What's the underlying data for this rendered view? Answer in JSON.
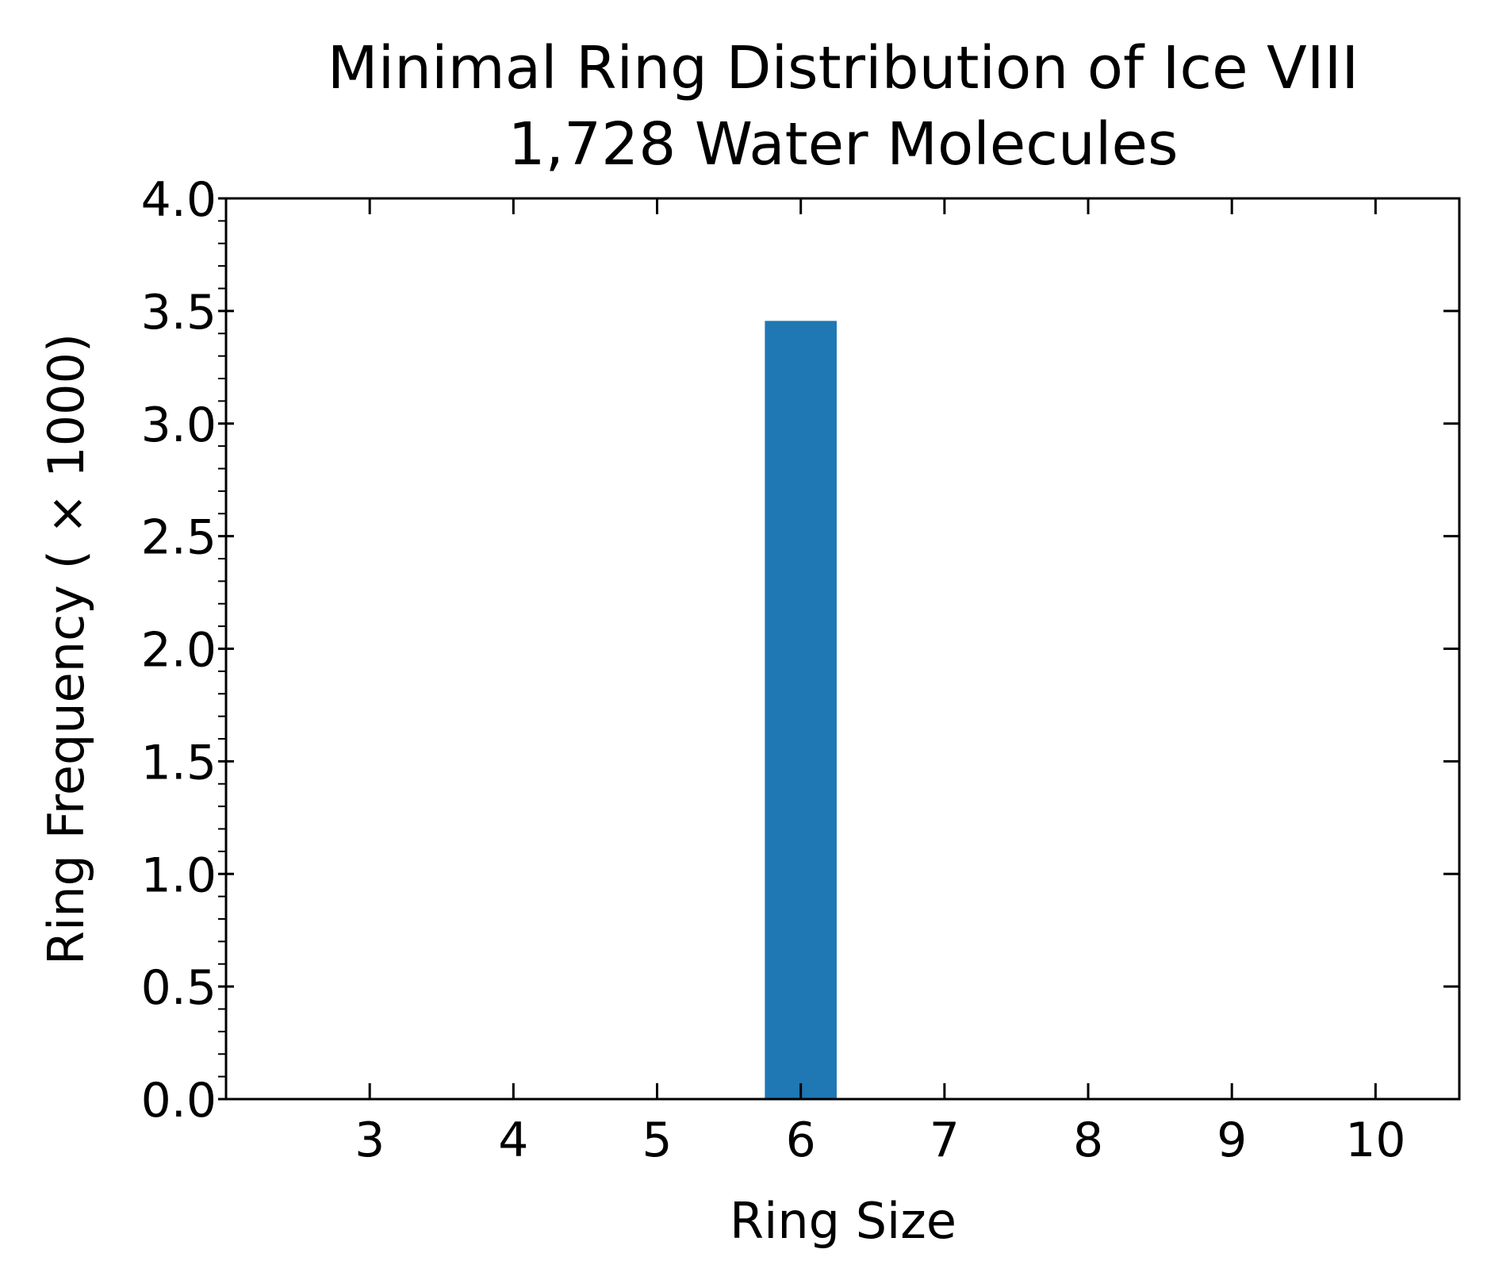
{
  "chart_data": {
    "type": "bar",
    "title": "Minimal Ring Distribution of Ice VIII",
    "subtitle": "1,728 Water Molecules",
    "xlabel": "Ring Size",
    "ylabel": "Ring Frequency ( × 1000)",
    "categories": [
      3,
      4,
      5,
      6,
      7,
      8,
      9,
      10
    ],
    "values": [
      0,
      0,
      0,
      3.456,
      0,
      0,
      0,
      0
    ],
    "xlim": [
      2,
      10.583
    ],
    "ylim": [
      0,
      4.0
    ],
    "x_ticks": [
      "3",
      "4",
      "5",
      "6",
      "7",
      "8",
      "9",
      "10"
    ],
    "y_ticks": [
      "0.0",
      "0.5",
      "1.0",
      "1.5",
      "2.0",
      "2.5",
      "3.0",
      "3.5",
      "4.0"
    ],
    "bar_width": 0.5,
    "bar_color": "#1f77b4",
    "grid": false,
    "legend": "none"
  }
}
